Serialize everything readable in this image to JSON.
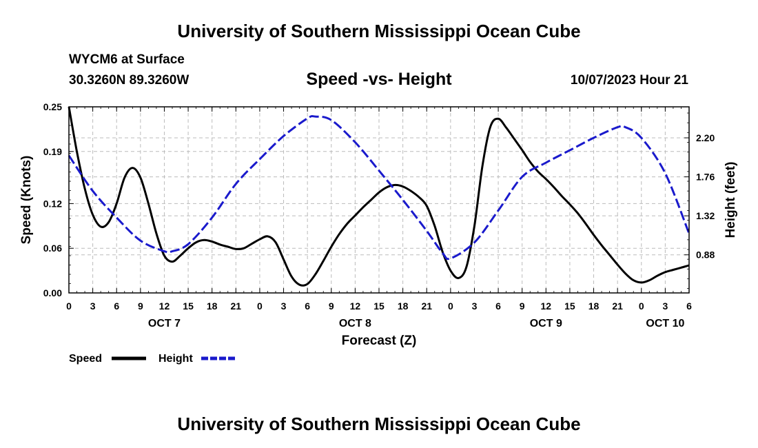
{
  "header": {
    "title_top": "University of Southern Mississippi Ocean Cube",
    "title_bottom": "University of Southern Mississippi Ocean Cube",
    "station": "WYCM6 at Surface",
    "coords": "30.3260N  89.3260W",
    "datetime": "10/07/2023 Hour 21"
  },
  "chart_data": {
    "type": "line",
    "title": "Speed -vs- Height",
    "xlabel": "Forecast (Z)",
    "ylabel": "Speed (Knots)",
    "y2label": "Height (feet)",
    "x_hours_range": [
      0,
      78
    ],
    "xticks": [
      0,
      3,
      6,
      9,
      12,
      15,
      18,
      21,
      24,
      27,
      30,
      33,
      36,
      39,
      42,
      45,
      48,
      51,
      54,
      57,
      60,
      63,
      66,
      69,
      72,
      75,
      78
    ],
    "xtick_labels": [
      "0",
      "3",
      "6",
      "9",
      "12",
      "15",
      "18",
      "21",
      "0",
      "3",
      "6",
      "9",
      "12",
      "15",
      "18",
      "21",
      "0",
      "3",
      "6",
      "9",
      "12",
      "15",
      "18",
      "21",
      "0",
      "3",
      "6"
    ],
    "day_labels": [
      {
        "hour": 12,
        "label": "OCT 7"
      },
      {
        "hour": 36,
        "label": "OCT 8"
      },
      {
        "hour": 60,
        "label": "OCT 9"
      },
      {
        "hour": 75,
        "label": "OCT 10"
      }
    ],
    "ylim": [
      0,
      0.25
    ],
    "yticks": [
      0,
      0.06,
      0.12,
      0.19,
      0.25
    ],
    "ytick_labels": [
      "0.00",
      "0.06",
      "0.12",
      "0.19",
      "0.25"
    ],
    "y2lim": [
      0.45,
      2.55
    ],
    "y2ticks": [
      0.88,
      1.32,
      1.76,
      2.2
    ],
    "y2tick_labels": [
      "0.88",
      "1.32",
      "1.76",
      "2.20"
    ],
    "grid": true,
    "legend_position": "bottom-left",
    "series": [
      {
        "name": "Speed",
        "axis": "left",
        "color": "#000000",
        "dash": "solid",
        "x": [
          0,
          1,
          2,
          3,
          4,
          5,
          6,
          7,
          8,
          9,
          10,
          11,
          12,
          13,
          14,
          15,
          16,
          17,
          18,
          19,
          20,
          21,
          22,
          23,
          24,
          25,
          26,
          27,
          28,
          29,
          30,
          31,
          32,
          33,
          34,
          35,
          36,
          37,
          38,
          39,
          40,
          41,
          42,
          43,
          44,
          45,
          46,
          47,
          48,
          49,
          50,
          51,
          52,
          53,
          54,
          55,
          56,
          57,
          58,
          59,
          60,
          61,
          62,
          63,
          64,
          65,
          66,
          67,
          68,
          69,
          70,
          71,
          72,
          73,
          74,
          75,
          76,
          77,
          78
        ],
        "values": [
          0.25,
          0.19,
          0.14,
          0.105,
          0.089,
          0.095,
          0.12,
          0.155,
          0.168,
          0.155,
          0.12,
          0.08,
          0.05,
          0.042,
          0.05,
          0.06,
          0.068,
          0.071,
          0.069,
          0.065,
          0.062,
          0.059,
          0.06,
          0.066,
          0.072,
          0.076,
          0.068,
          0.045,
          0.022,
          0.011,
          0.012,
          0.025,
          0.043,
          0.062,
          0.079,
          0.093,
          0.104,
          0.115,
          0.125,
          0.135,
          0.142,
          0.145,
          0.143,
          0.137,
          0.129,
          0.117,
          0.09,
          0.055,
          0.03,
          0.02,
          0.035,
          0.09,
          0.17,
          0.223,
          0.234,
          0.222,
          0.207,
          0.192,
          0.176,
          0.163,
          0.153,
          0.142,
          0.13,
          0.119,
          0.107,
          0.093,
          0.078,
          0.064,
          0.051,
          0.038,
          0.026,
          0.017,
          0.014,
          0.017,
          0.023,
          0.028,
          0.031,
          0.034,
          0.037
        ]
      },
      {
        "name": "Height",
        "axis": "right",
        "color": "#1a1acc",
        "dash": "dashed",
        "x": [
          0,
          3,
          6,
          9,
          12,
          13,
          15,
          18,
          21,
          24,
          27,
          30,
          31,
          33,
          36,
          39,
          42,
          45,
          47,
          48,
          51,
          54,
          57,
          60,
          63,
          66,
          69,
          70,
          72,
          75,
          78
        ],
        "values": [
          2.0,
          1.6,
          1.3,
          1.04,
          0.92,
          0.92,
          1.0,
          1.3,
          1.68,
          1.96,
          2.22,
          2.42,
          2.44,
          2.4,
          2.15,
          1.83,
          1.5,
          1.15,
          0.9,
          0.84,
          1.02,
          1.38,
          1.76,
          1.92,
          2.06,
          2.2,
          2.32,
          2.32,
          2.2,
          1.8,
          1.12
        ]
      }
    ]
  }
}
